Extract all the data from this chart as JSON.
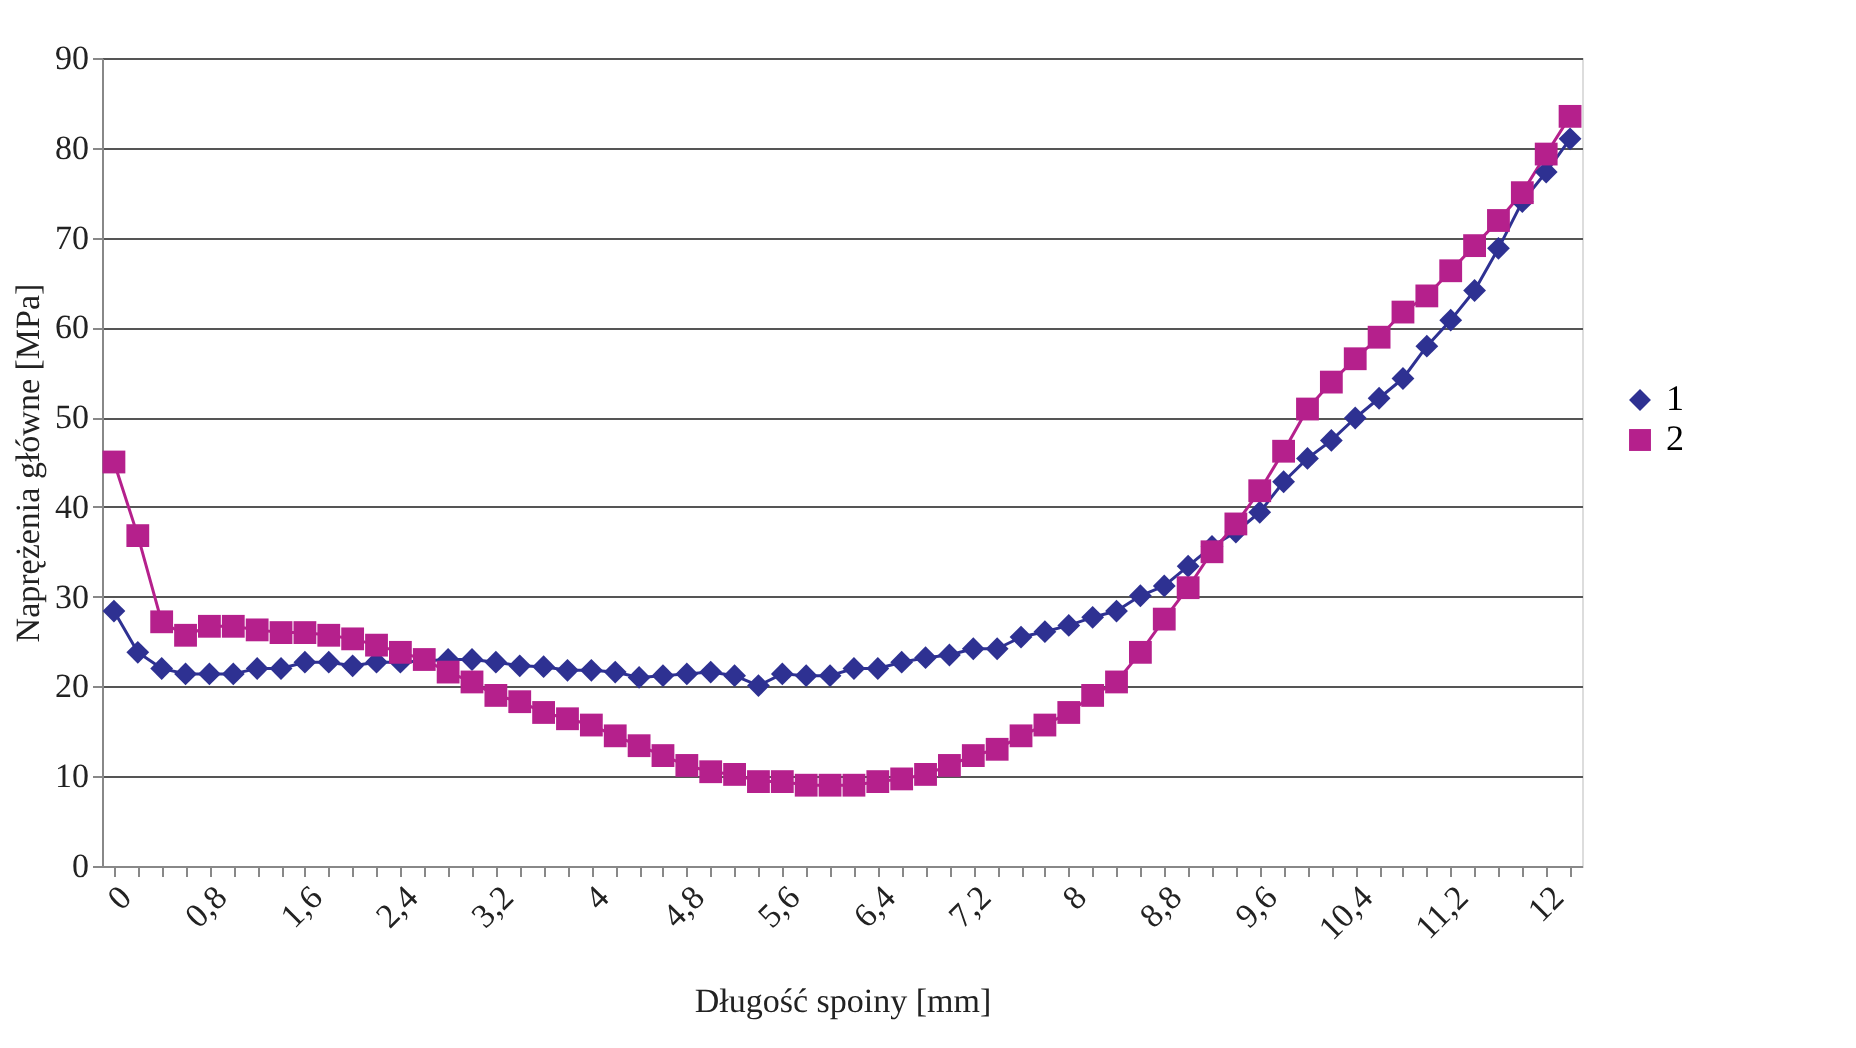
{
  "chart_data": {
    "type": "line",
    "xlabel": "Długość spoiny [mm]",
    "ylabel": "Naprężenia główne [MPa]",
    "categories": [
      "0",
      null,
      null,
      null,
      "0,8",
      null,
      null,
      null,
      "1,6",
      null,
      null,
      null,
      "2,4",
      null,
      null,
      null,
      "3,2",
      null,
      null,
      null,
      "4",
      null,
      null,
      null,
      "4,8",
      null,
      null,
      null,
      "5,6",
      null,
      null,
      null,
      "6,4",
      null,
      null,
      null,
      "7,2",
      null,
      null,
      null,
      "8",
      null,
      null,
      null,
      "8,8",
      null,
      null,
      null,
      "9,6",
      null,
      null,
      null,
      "10,4",
      null,
      null,
      null,
      "11,2",
      null,
      null,
      null,
      "12",
      null
    ],
    "series": [
      {
        "name": "1",
        "color": "#2e3192",
        "marker": "diamond",
        "values": [
          28.4,
          23.8,
          22.0,
          21.4,
          21.4,
          21.4,
          22.0,
          22.0,
          22.7,
          22.7,
          22.3,
          22.7,
          22.7,
          null,
          23.0,
          23.0,
          22.7,
          22.3,
          22.2,
          21.8,
          21.8,
          21.6,
          21.0,
          21.2,
          21.4,
          21.6,
          21.2,
          20.1,
          21.4,
          21.2,
          21.2,
          22.0,
          22.0,
          22.7,
          23.2,
          23.5,
          24.2,
          24.2,
          25.5,
          26.1,
          26.8,
          27.7,
          28.4,
          30.1,
          31.2,
          33.4,
          35.6,
          37.2,
          39.4,
          42.8,
          45.4,
          47.4,
          49.9,
          52.1,
          54.3,
          57.9,
          60.8,
          64.1,
          68.8,
          74.0,
          77.3,
          81.0
        ]
      },
      {
        "name": "2",
        "color": "#b5208c",
        "marker": "square",
        "values": [
          45.0,
          36.8,
          27.2,
          25.7,
          26.7,
          26.7,
          26.3,
          26.0,
          26.0,
          25.7,
          25.3,
          24.6,
          23.8,
          23.0,
          21.6,
          20.5,
          19.0,
          18.3,
          17.1,
          16.4,
          15.7,
          14.5,
          13.4,
          12.3,
          11.2,
          10.5,
          10.2,
          9.4,
          9.4,
          9.0,
          9.0,
          9.0,
          9.4,
          9.7,
          10.2,
          11.2,
          12.3,
          13.0,
          14.5,
          15.7,
          17.1,
          19.0,
          20.5,
          23.8,
          27.5,
          31.0,
          35.0,
          38.1,
          41.8,
          46.2,
          50.9,
          53.9,
          56.5,
          58.9,
          61.7,
          63.5,
          66.3,
          69.1,
          71.9,
          75.0,
          79.3,
          83.5
        ]
      }
    ],
    "ylim": [
      0,
      90
    ],
    "yticks": [
      0,
      10,
      20,
      30,
      40,
      50,
      60,
      70,
      80,
      90
    ],
    "grid": "y",
    "legend": "right",
    "line_style": "solid"
  }
}
